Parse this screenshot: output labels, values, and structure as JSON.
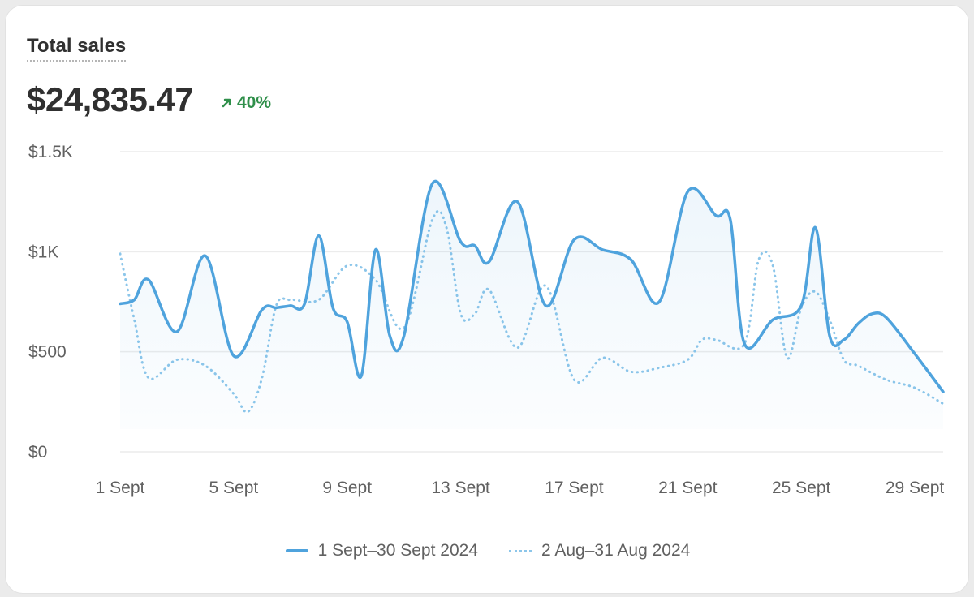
{
  "card": {
    "title": "Total sales",
    "total": "$24,835.47",
    "change": "40%",
    "change_direction": "up",
    "change_color": "#2f8f4a"
  },
  "chart_data": {
    "type": "line",
    "y_ticks": [
      "$0",
      "$500",
      "$1K",
      "$1.5K"
    ],
    "y_tick_values": [
      0,
      500,
      1000,
      1500
    ],
    "ylim": [
      0,
      1500
    ],
    "x_ticks": [
      "1 Sept",
      "5 Sept",
      "9 Sept",
      "13 Sept",
      "17 Sept",
      "21 Sept",
      "25 Sept",
      "29 Sept"
    ],
    "x_tick_days": [
      1,
      5,
      9,
      13,
      17,
      21,
      25,
      29
    ],
    "x_range_days": [
      1,
      30
    ],
    "grid": true,
    "legend_position": "bottom",
    "series": [
      {
        "name": "1 Sept–30 Sept 2024",
        "style": "solid",
        "color": "#4fa3dd",
        "fill": true,
        "x": [
          1,
          1.5,
          2,
          3,
          4,
          5,
          6,
          6.5,
          7,
          7.5,
          8,
          8.5,
          9,
          9.5,
          10,
          10.5,
          11,
          12,
          13,
          13.5,
          14,
          15,
          16,
          17,
          18,
          19,
          20,
          21,
          22,
          22.5,
          23,
          24,
          25,
          25.5,
          26,
          26.5,
          27,
          27.5,
          28,
          29,
          30
        ],
        "values": [
          740,
          760,
          860,
          600,
          980,
          480,
          710,
          720,
          730,
          740,
          1080,
          720,
          650,
          380,
          1010,
          580,
          580,
          1340,
          1050,
          1030,
          950,
          1250,
          730,
          1060,
          1010,
          960,
          750,
          1300,
          1180,
          1160,
          540,
          660,
          730,
          1120,
          580,
          560,
          640,
          690,
          670,
          490,
          300
        ]
      },
      {
        "name": "2 Aug–31 Aug 2024",
        "style": "dotted",
        "color": "#8cc6ea",
        "fill": false,
        "x": [
          1,
          1.5,
          2,
          3,
          4,
          5,
          5.5,
          6,
          6.5,
          7,
          8,
          9,
          10,
          11,
          12,
          12.5,
          13,
          13.5,
          14,
          15,
          16,
          17,
          18,
          19,
          20,
          21,
          21.5,
          22,
          23,
          23.5,
          24,
          24.5,
          25,
          25.5,
          26,
          26.5,
          27,
          28,
          29,
          30
        ],
        "values": [
          990,
          660,
          370,
          460,
          430,
          290,
          200,
          370,
          730,
          760,
          760,
          930,
          860,
          620,
          1160,
          1120,
          690,
          690,
          810,
          520,
          830,
          360,
          470,
          400,
          420,
          460,
          560,
          560,
          540,
          960,
          930,
          470,
          720,
          800,
          660,
          460,
          430,
          360,
          320,
          240
        ]
      }
    ]
  }
}
